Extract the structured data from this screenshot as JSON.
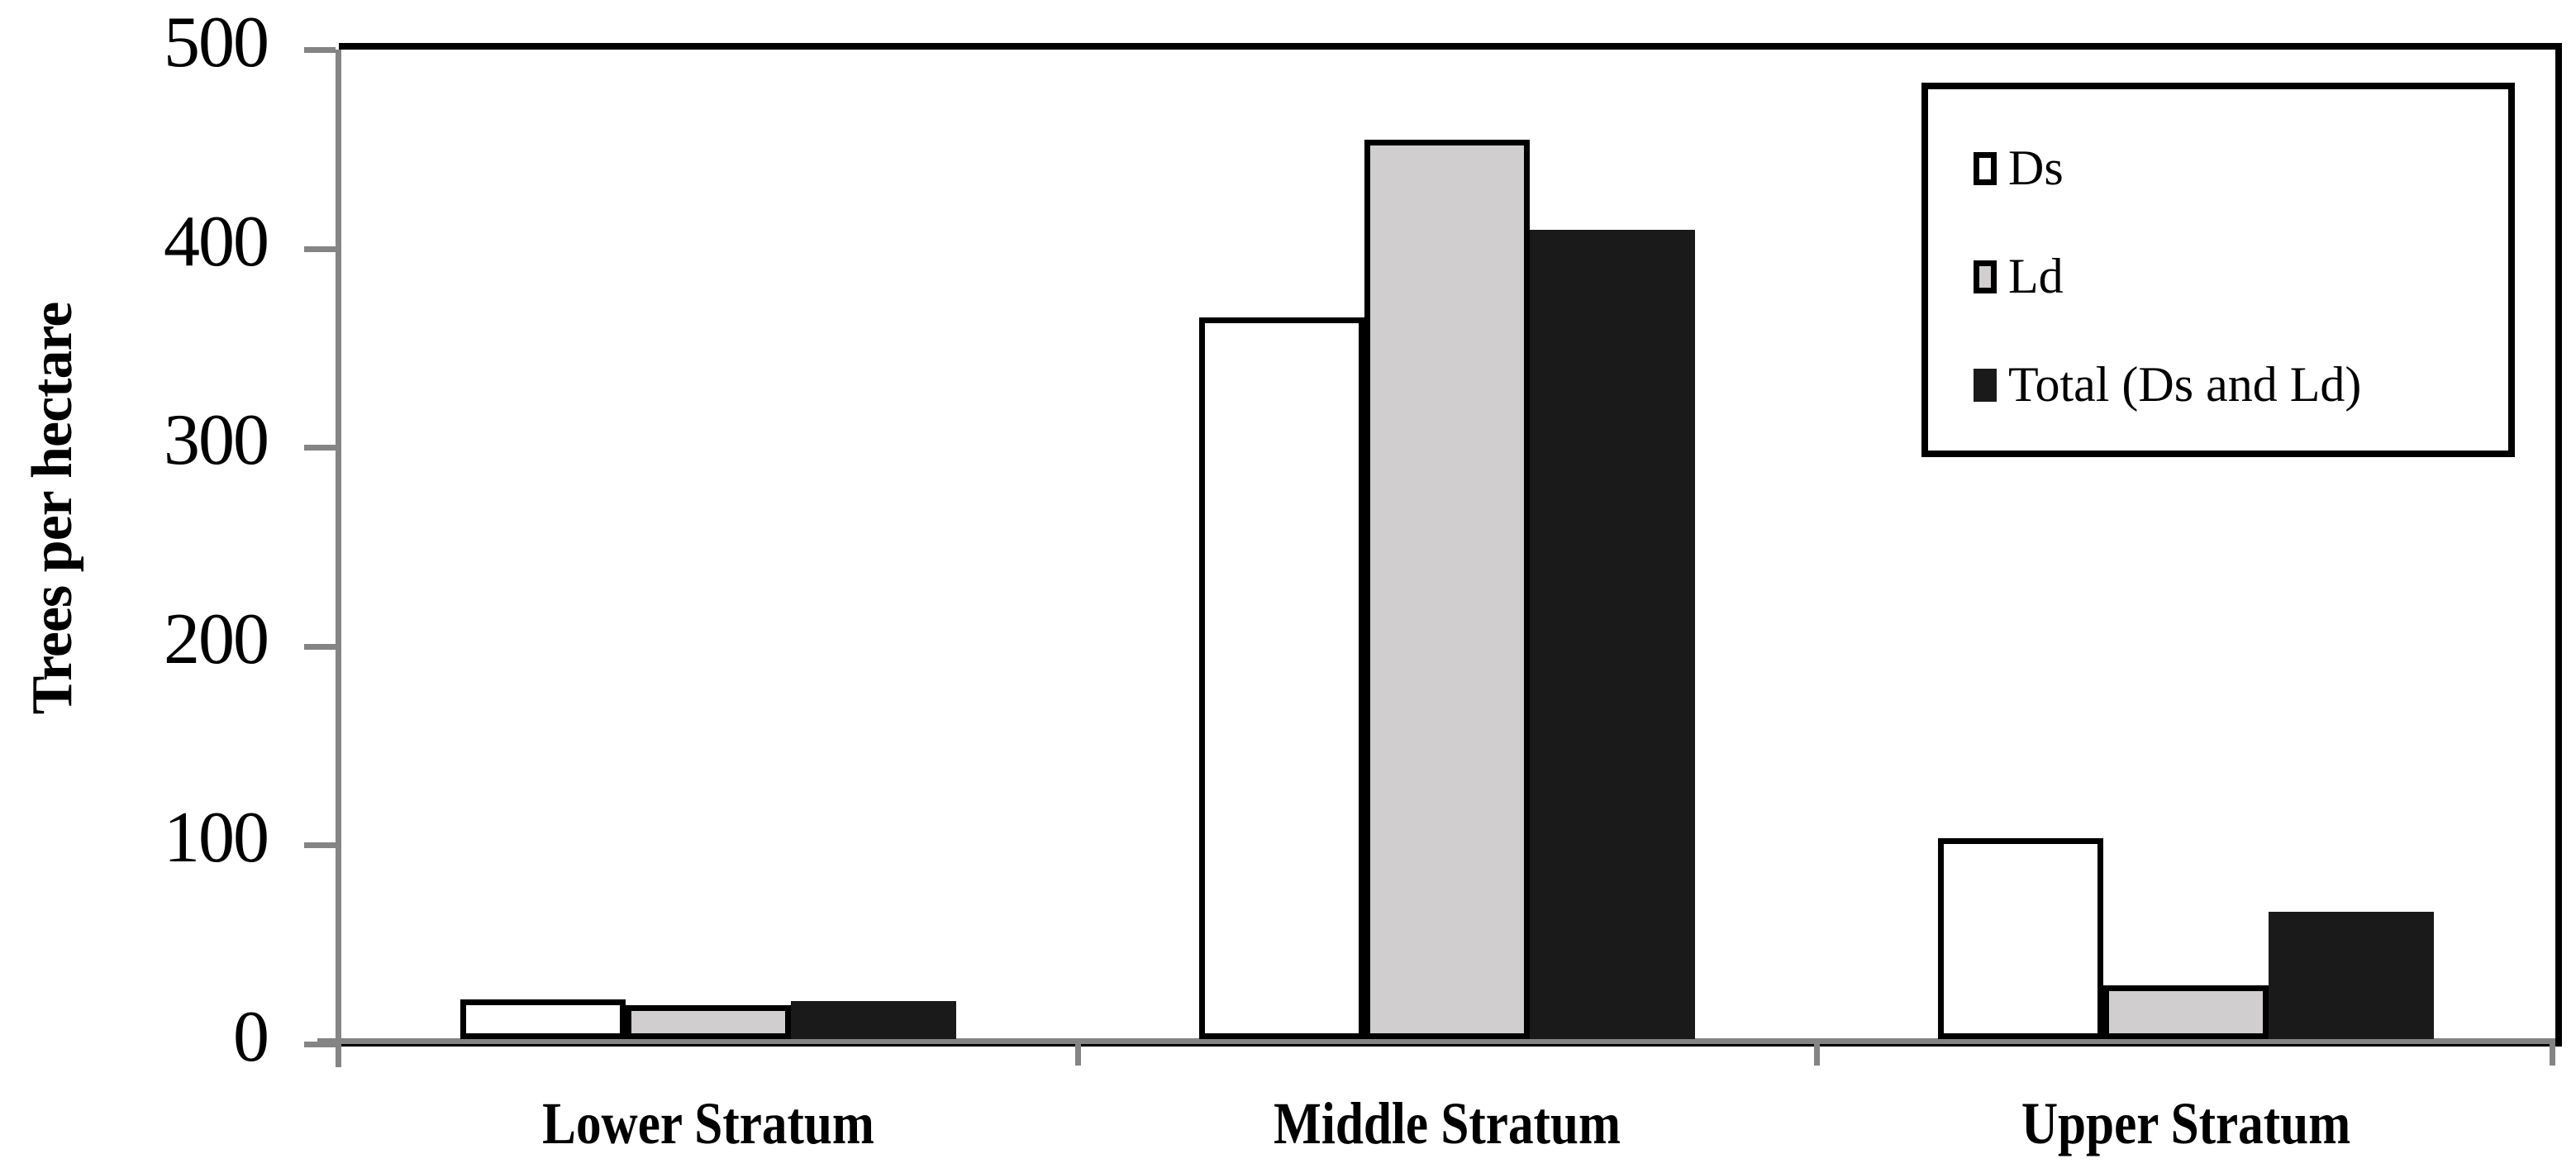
{
  "chart_data": {
    "type": "bar",
    "title": "",
    "categories": [
      "Lower Stratum",
      "Middle Stratum",
      "Upper Stratum"
    ],
    "series": [
      {
        "name": "Ds",
        "fill": "#ffffff",
        "border": "#000000",
        "border_width_px": 7,
        "values": [
          20,
          363,
          101
        ]
      },
      {
        "name": "Ld",
        "fill": "#d0cece",
        "border": "#000000",
        "border_width_px": 7,
        "values": [
          17,
          452,
          27
        ]
      },
      {
        "name": "Total (Ds and Ld)",
        "fill": "#1a1a1a",
        "border": "#1a1a1a",
        "border_width_px": 0,
        "values": [
          19,
          407,
          64
        ]
      }
    ],
    "xlabel": "",
    "ylabel": "Trees per hectare",
    "ylim": [
      0,
      500
    ],
    "yticks": [
      0,
      100,
      200,
      300,
      400,
      500
    ],
    "ytick_labels_desc": [
      "500",
      "400",
      "300",
      "200",
      "100",
      "0"
    ],
    "grid": false,
    "legend_position": "top-right",
    "axis_color": "#848484",
    "plot_border_color": "#000000",
    "background_color": "#ffffff"
  }
}
